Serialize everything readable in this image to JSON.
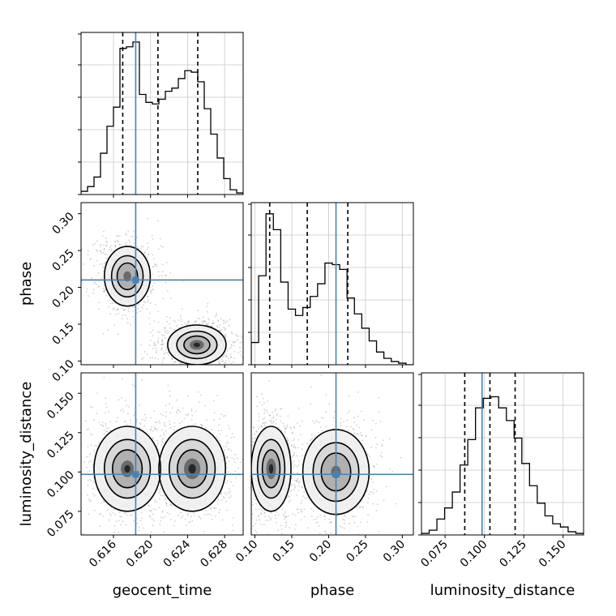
{
  "chart_data": {
    "type": "corner",
    "colors": {
      "truth": "#4682b4",
      "hist": "#000000",
      "quantile": "#000000",
      "grid": "#c8c8c8",
      "points": "#9a9a9a"
    },
    "parameters": [
      {
        "name": "geocent_time",
        "label": "geocent_time",
        "range": [
          0.6125,
          0.63
        ],
        "ticks": [
          0.616,
          0.62,
          0.624,
          0.628
        ],
        "tick_labels": [
          "0.616",
          "0.620",
          "0.624",
          "0.628"
        ],
        "truth": 0.6184,
        "quantiles": [
          0.617,
          0.6208,
          0.6251
        ],
        "histogram": {
          "edges": [
            0.6125,
            0.63
          ],
          "counts": [
            0.02,
            0.05,
            0.11,
            0.26,
            0.43,
            0.55,
            0.92,
            0.93,
            0.96,
            0.63,
            0.58,
            0.57,
            0.6,
            0.65,
            0.67,
            0.73,
            0.78,
            0.77,
            0.71,
            0.54,
            0.38,
            0.23,
            0.1,
            0.03,
            0.01
          ]
        }
      },
      {
        "name": "phase",
        "label": "phase",
        "range": [
          0.095,
          0.315
        ],
        "ticks": [
          0.1,
          0.15,
          0.2,
          0.25,
          0.3
        ],
        "tick_labels": [
          "0.10",
          "0.15",
          "0.20",
          "0.25",
          "0.30"
        ],
        "truth": 0.21,
        "quantiles": [
          0.12,
          0.171,
          0.226
        ],
        "histogram": {
          "edges": [
            0.095,
            0.315
          ],
          "counts": [
            0.14,
            0.56,
            0.95,
            0.85,
            0.52,
            0.35,
            0.31,
            0.36,
            0.43,
            0.51,
            0.64,
            0.63,
            0.6,
            0.42,
            0.32,
            0.23,
            0.15,
            0.08,
            0.04,
            0.02,
            0.01,
            0.0
          ]
        }
      },
      {
        "name": "luminosity_distance",
        "label": "luminosity_distance",
        "range": [
          0.06,
          0.163
        ],
        "ticks": [
          0.075,
          0.1,
          0.125,
          0.15
        ],
        "tick_labels": [
          "0.075",
          "0.100",
          "0.125",
          "0.150"
        ],
        "truth": 0.0985,
        "quantiles": [
          0.0875,
          0.1035,
          0.1195
        ],
        "histogram": {
          "edges": [
            0.06,
            0.163
          ],
          "counts": [
            0.01,
            0.03,
            0.1,
            0.17,
            0.27,
            0.44,
            0.6,
            0.8,
            0.86,
            0.87,
            0.8,
            0.72,
            0.61,
            0.45,
            0.31,
            0.2,
            0.12,
            0.07,
            0.05,
            0.02,
            0.01
          ]
        }
      }
    ],
    "pairs": [
      {
        "x": "geocent_time",
        "y": "phase",
        "modes": [
          {
            "mean": [
              0.6175,
              0.215
            ],
            "sd": [
              0.0011,
              0.018
            ],
            "weight": 0.45
          },
          {
            "mean": [
              0.625,
              0.122
            ],
            "sd": [
              0.0014,
              0.012
            ],
            "weight": 0.55
          }
        ],
        "density_peaks": [
          {
            "x": 0.6175,
            "y": 0.218,
            "level": 0.7
          },
          {
            "x": 0.6252,
            "y": 0.12,
            "level": 1.0
          }
        ]
      },
      {
        "x": "geocent_time",
        "y": "luminosity_distance",
        "modes": [
          {
            "mean": [
              0.6175,
              0.102
            ],
            "sd": [
              0.0016,
              0.012
            ],
            "weight": 0.5
          },
          {
            "mean": [
              0.6245,
              0.102
            ],
            "sd": [
              0.0016,
              0.012
            ],
            "weight": 0.5
          }
        ],
        "density_peaks": [
          {
            "x": 0.6173,
            "y": 0.104,
            "level": 0.8
          },
          {
            "x": 0.6242,
            "y": 0.104,
            "level": 1.0
          }
        ]
      },
      {
        "x": "phase",
        "y": "luminosity_distance",
        "modes": [
          {
            "mean": [
              0.122,
              0.102
            ],
            "sd": [
              0.012,
              0.012
            ],
            "weight": 0.55
          },
          {
            "mean": [
              0.21,
              0.1
            ],
            "sd": [
              0.02,
              0.012
            ],
            "weight": 0.45
          }
        ],
        "density_peaks": [
          {
            "x": 0.12,
            "y": 0.104,
            "level": 1.0
          },
          {
            "x": 0.21,
            "y": 0.1,
            "level": 0.6
          }
        ]
      }
    ]
  }
}
